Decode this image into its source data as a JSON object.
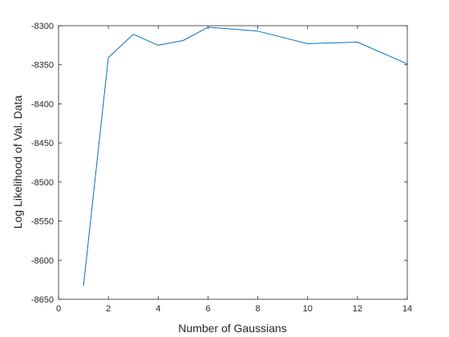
{
  "chart_data": {
    "type": "line",
    "title": "",
    "xlabel": "Number of Gaussians",
    "ylabel": "Log Likelihood of Val. Data",
    "xlim": [
      0,
      14
    ],
    "ylim": [
      -8650,
      -8300
    ],
    "xticks": [
      0,
      2,
      4,
      6,
      8,
      10,
      12,
      14
    ],
    "yticks": [
      -8300,
      -8350,
      -8400,
      -8450,
      -8500,
      -8550,
      -8600,
      -8650
    ],
    "grid": false,
    "legend": "none",
    "series": [
      {
        "x": [
          1,
          2,
          3,
          4,
          5,
          6,
          8,
          10,
          12,
          14
        ],
        "values": [
          -8633,
          -8341,
          -8311,
          -8325,
          -8319,
          -8302,
          -8307,
          -8323,
          -8321,
          -8349
        ]
      }
    ]
  },
  "colors": {
    "line": "#0072bd",
    "axis": "#262626",
    "background": "#ffffff"
  }
}
